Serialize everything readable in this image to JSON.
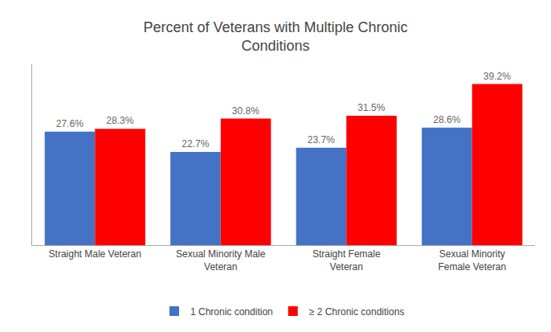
{
  "chart_data": {
    "type": "bar",
    "title": "Percent of Veterans with Multiple Chronic\nConditions",
    "categories": [
      "Straight Male Veteran",
      "Sexual Minority Male\nVeteran",
      "Straight Female\nVeteran",
      "Sexual Minority\nFemale Veteran"
    ],
    "series": [
      {
        "name": "1 Chronic condition",
        "color": "#4472C4",
        "values": [
          27.6,
          22.7,
          23.7,
          28.6
        ],
        "value_labels": [
          "27.6%",
          "22.7%",
          "23.7%",
          "28.6%"
        ]
      },
      {
        "name": "≥ 2 Chronic conditions",
        "color": "#FF0000",
        "values": [
          28.3,
          30.8,
          31.5,
          39.2
        ],
        "value_labels": [
          "28.3%",
          "30.8%",
          "31.5%",
          "39.2%"
        ]
      }
    ],
    "ylim": [
      0,
      44
    ],
    "grid": false,
    "legend": "bottom",
    "data_labels": true,
    "tick_labels": "x"
  }
}
